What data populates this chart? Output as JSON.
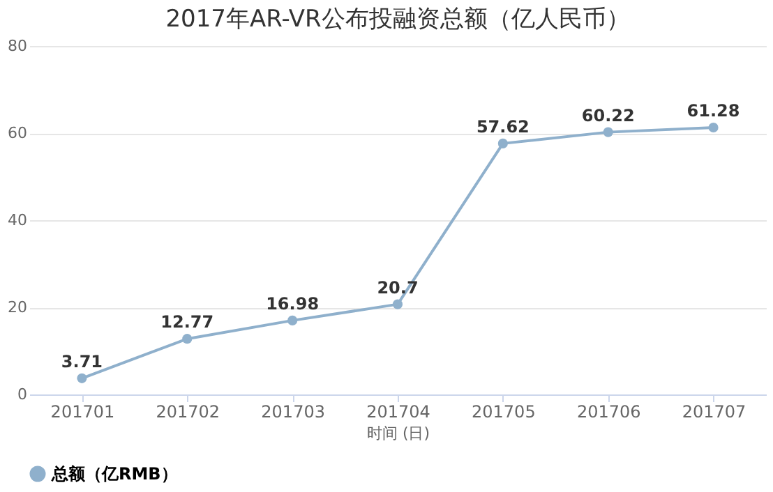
{
  "chart_data": {
    "type": "line",
    "title": "2017年AR-VR公布投融资总额（亿人民币）",
    "xlabel": "时间 (日)",
    "categories": [
      "201701",
      "201702",
      "201703",
      "201704",
      "201705",
      "201706",
      "201707"
    ],
    "series": [
      {
        "name": "总额（亿RMB）",
        "color": "#8fb0cc",
        "values": [
          3.71,
          12.77,
          16.98,
          20.7,
          57.62,
          60.22,
          61.28
        ]
      }
    ],
    "ylim": [
      0,
      80
    ],
    "yticks": [
      0,
      20,
      40,
      60,
      80
    ],
    "grid": "y",
    "legend": "bottom",
    "marker": "circle",
    "line_style": "solid",
    "data_labels": true
  }
}
